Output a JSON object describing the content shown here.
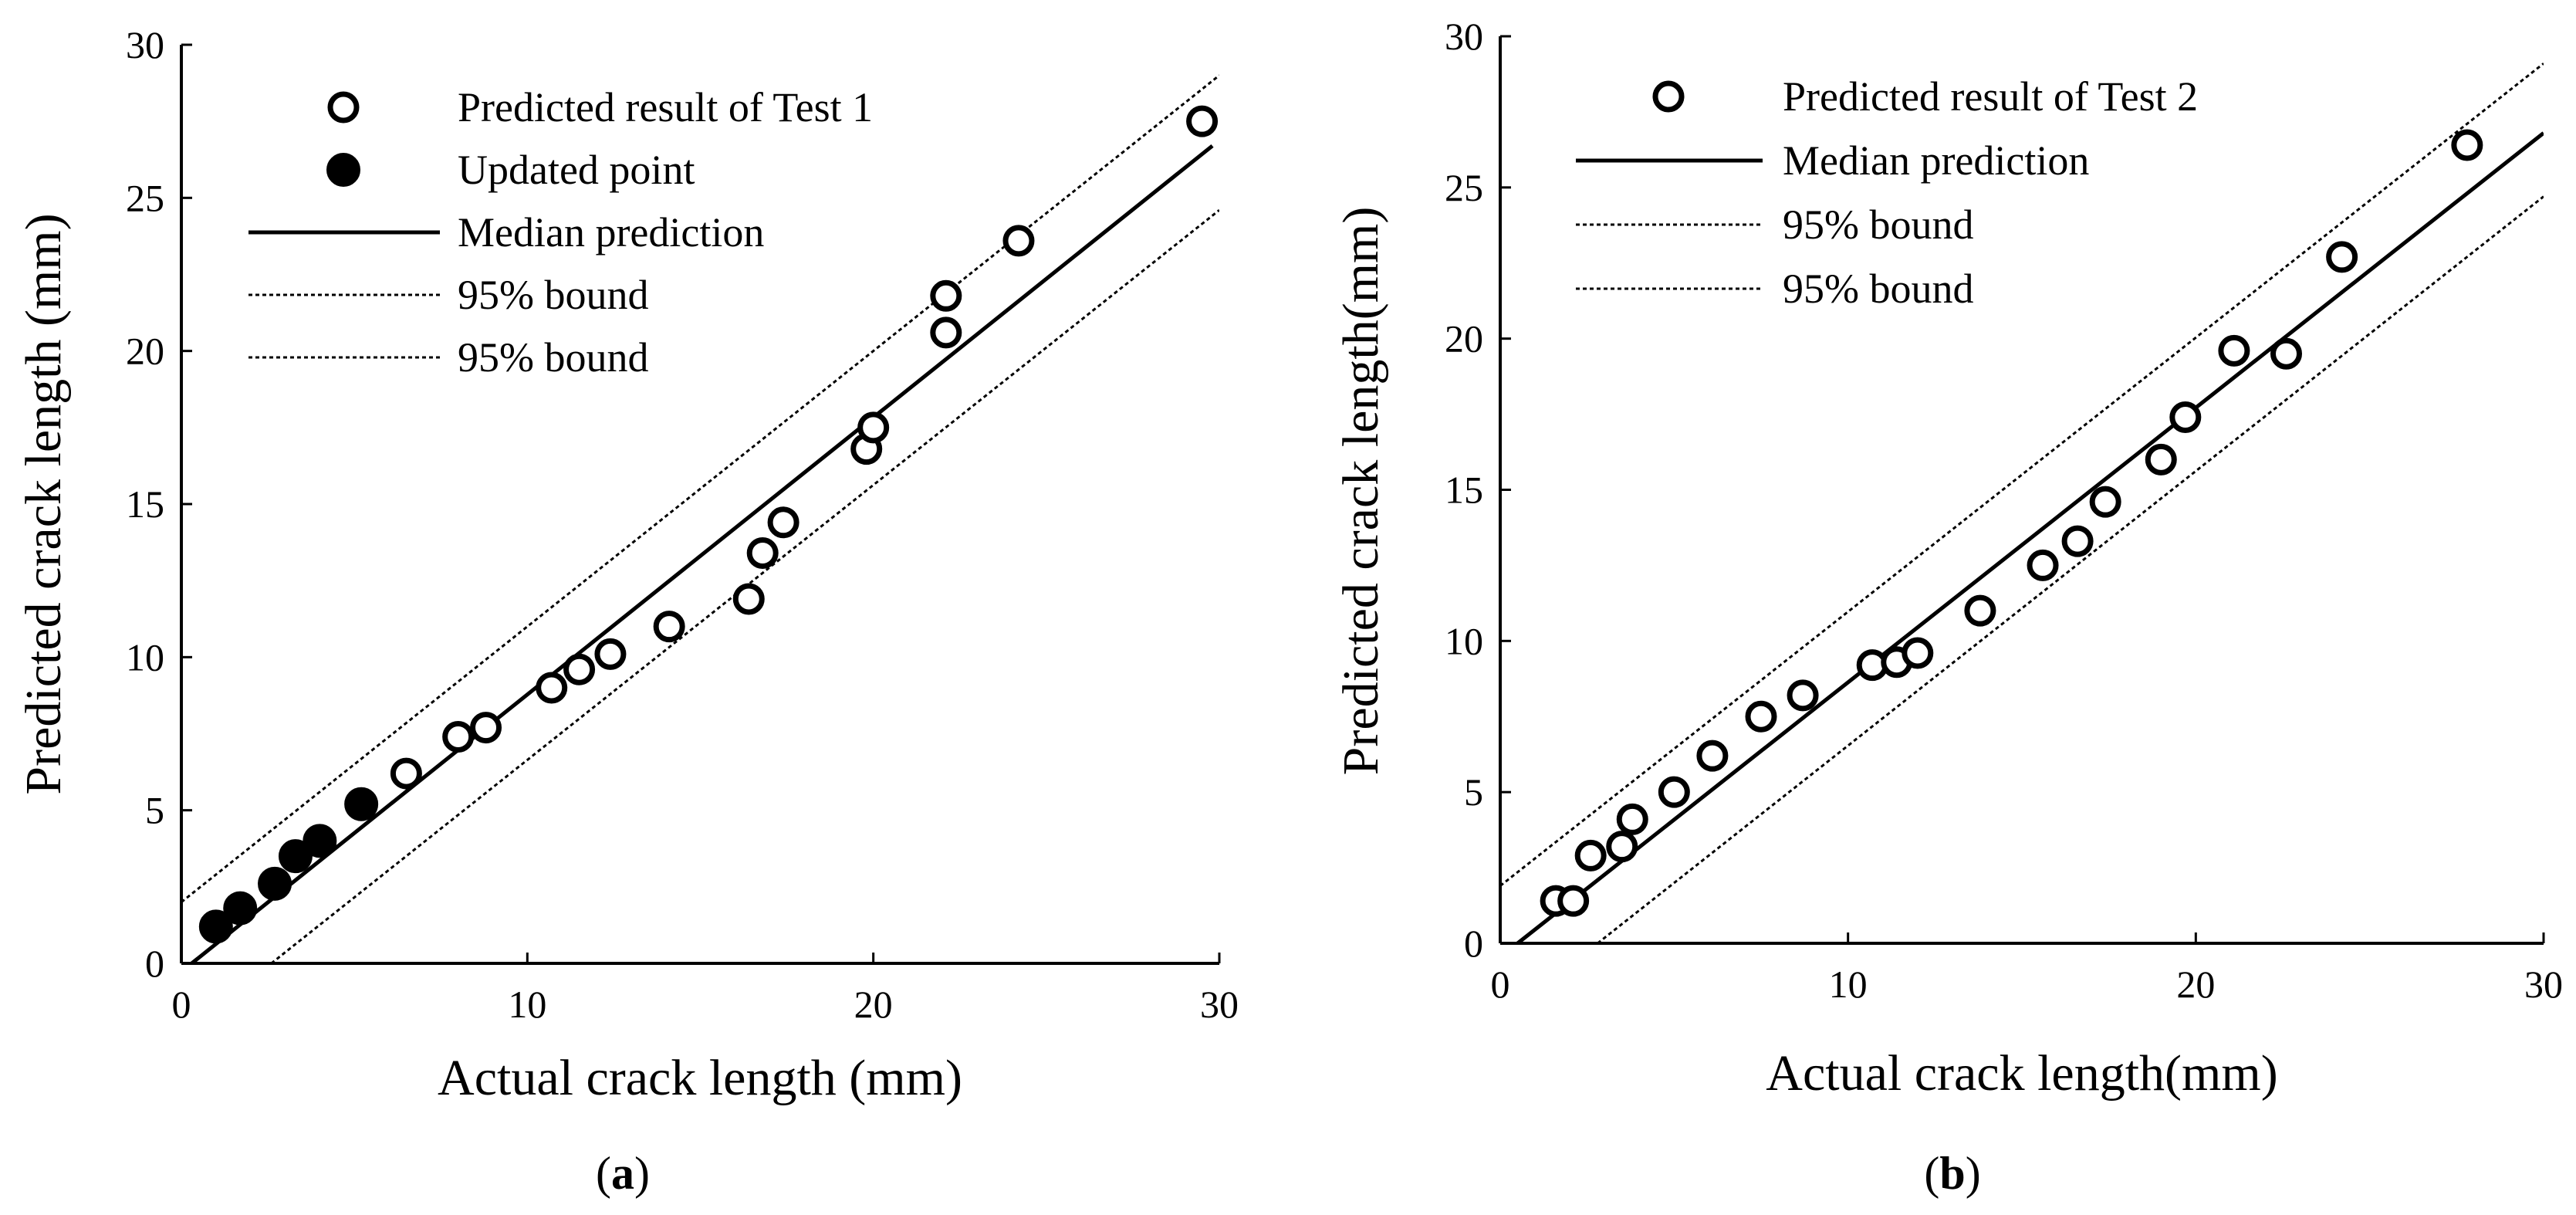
{
  "chart_data": [
    {
      "type": "scatter",
      "caption": "(a)",
      "caption_letter": "a",
      "xlabel": "Actual crack length (mm)",
      "ylabel": "Predicted crack length (mm)",
      "xlim": [
        0,
        30
      ],
      "ylim": [
        0,
        30
      ],
      "xticks": [
        "0",
        "10",
        "20",
        "30"
      ],
      "yticks": [
        "0",
        "5",
        "10",
        "15",
        "20",
        "25",
        "30"
      ],
      "legend_position": "top-left",
      "series": [
        {
          "name": "Predicted result of Test 1",
          "style": "open-circle",
          "x": [
            6.5,
            8.0,
            8.8,
            10.7,
            11.5,
            12.4,
            14.1,
            16.4,
            16.8,
            17.4,
            19.8,
            20.0,
            22.1,
            22.1,
            24.2,
            29.5
          ],
          "y": [
            6.2,
            7.4,
            7.7,
            9.0,
            9.6,
            10.1,
            11.0,
            11.9,
            13.4,
            14.4,
            16.8,
            17.5,
            20.6,
            21.8,
            23.6,
            27.5
          ]
        },
        {
          "name": "Updated point",
          "style": "filled-circle",
          "x": [
            1.0,
            1.7,
            2.7,
            3.3,
            4.0,
            5.2
          ],
          "y": [
            1.2,
            1.8,
            2.6,
            3.5,
            4.0,
            5.2
          ]
        },
        {
          "name": "Median prediction",
          "style": "solid-line",
          "x": [
            0.3,
            29.8
          ],
          "y": [
            0,
            26.7
          ]
        },
        {
          "name": "95% bound",
          "style": "dotted-line",
          "x": [
            0,
            30
          ],
          "y": [
            2.0,
            29.0
          ]
        },
        {
          "name": "95% bound",
          "style": "dotted-line",
          "x": [
            2.6,
            30
          ],
          "y": [
            0,
            24.6
          ]
        }
      ]
    },
    {
      "type": "scatter",
      "caption": "(b)",
      "caption_letter": "b",
      "xlabel": "Actual crack length(mm)",
      "ylabel": "Predicted crack length(mm)",
      "xlim": [
        0,
        30
      ],
      "ylim": [
        0,
        30
      ],
      "xticks": [
        "0",
        "10",
        "20",
        "30"
      ],
      "yticks": [
        "0",
        "5",
        "10",
        "15",
        "20",
        "25",
        "30"
      ],
      "legend_position": "top-left",
      "series": [
        {
          "name": "Predicted result of Test 2",
          "style": "open-circle",
          "x": [
            1.6,
            2.1,
            2.6,
            3.5,
            3.8,
            5.0,
            6.1,
            7.5,
            8.7,
            10.7,
            11.4,
            12.0,
            13.8,
            15.6,
            16.6,
            17.4,
            19.0,
            19.7,
            21.1,
            22.6,
            24.2,
            27.8
          ],
          "y": [
            1.4,
            1.4,
            2.9,
            3.2,
            4.1,
            5.0,
            6.2,
            7.5,
            8.2,
            9.2,
            9.3,
            9.6,
            11.0,
            12.5,
            13.3,
            14.6,
            16.0,
            17.4,
            19.6,
            19.5,
            22.7,
            26.4
          ]
        },
        {
          "name": "Median prediction",
          "style": "solid-line",
          "x": [
            0.5,
            30
          ],
          "y": [
            0,
            26.8
          ]
        },
        {
          "name": "95% bound",
          "style": "dotted-line",
          "x": [
            0,
            30
          ],
          "y": [
            1.9,
            29.1
          ]
        },
        {
          "name": "95% bound",
          "style": "dotted-line",
          "x": [
            2.8,
            30
          ],
          "y": [
            0,
            24.7
          ]
        }
      ]
    }
  ]
}
